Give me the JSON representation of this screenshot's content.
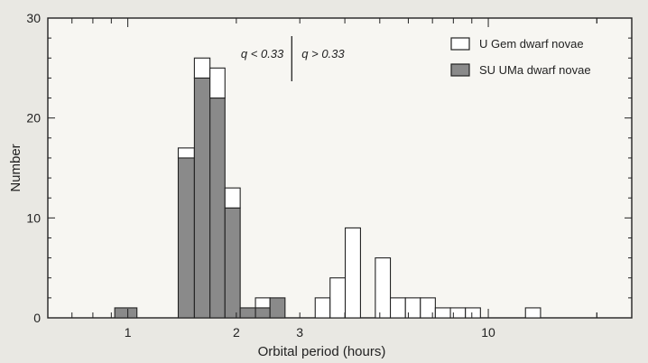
{
  "chart_data": {
    "type": "bar",
    "title": "",
    "xlabel": "Orbital period (hours)",
    "ylabel": "Number",
    "x_scale": "log",
    "xlim": [
      0.6,
      25
    ],
    "ylim": [
      0,
      30
    ],
    "x_ticks": [
      1,
      2,
      3,
      10
    ],
    "y_ticks": [
      0,
      10,
      20,
      30
    ],
    "grid": false,
    "legend_position": "top-right",
    "bin_edges": [
      0.92,
      1.06,
      1.38,
      1.53,
      1.69,
      1.86,
      2.05,
      2.26,
      2.48,
      2.73,
      3.01,
      3.31,
      3.64,
      4.01,
      4.42,
      4.86,
      5.35,
      5.89,
      6.48,
      7.13,
      7.85,
      8.64,
      9.51,
      10.47,
      11.52,
      12.68,
      13.96
    ],
    "series": [
      {
        "name": "U Gem dwarf novae",
        "style": "open",
        "color": "#ffffff",
        "values": [
          0,
          0,
          1,
          2,
          3,
          2,
          0,
          1,
          0,
          0,
          0,
          2,
          4,
          9,
          0,
          6,
          2,
          2,
          2,
          1,
          1,
          1,
          0,
          0,
          0,
          1
        ]
      },
      {
        "name": "SU UMa dwarf novae",
        "style": "shaded",
        "color": "#8a8a8a",
        "values": [
          1,
          0,
          16,
          24,
          22,
          11,
          1,
          1,
          2,
          0,
          0,
          0,
          0,
          0,
          0,
          0,
          0,
          0,
          0,
          0,
          0,
          0,
          0,
          0,
          0,
          0
        ]
      }
    ],
    "annotations": [
      {
        "text_left": "q < 0.33",
        "text_right": "q > 0.33",
        "x": 2.85
      }
    ]
  }
}
